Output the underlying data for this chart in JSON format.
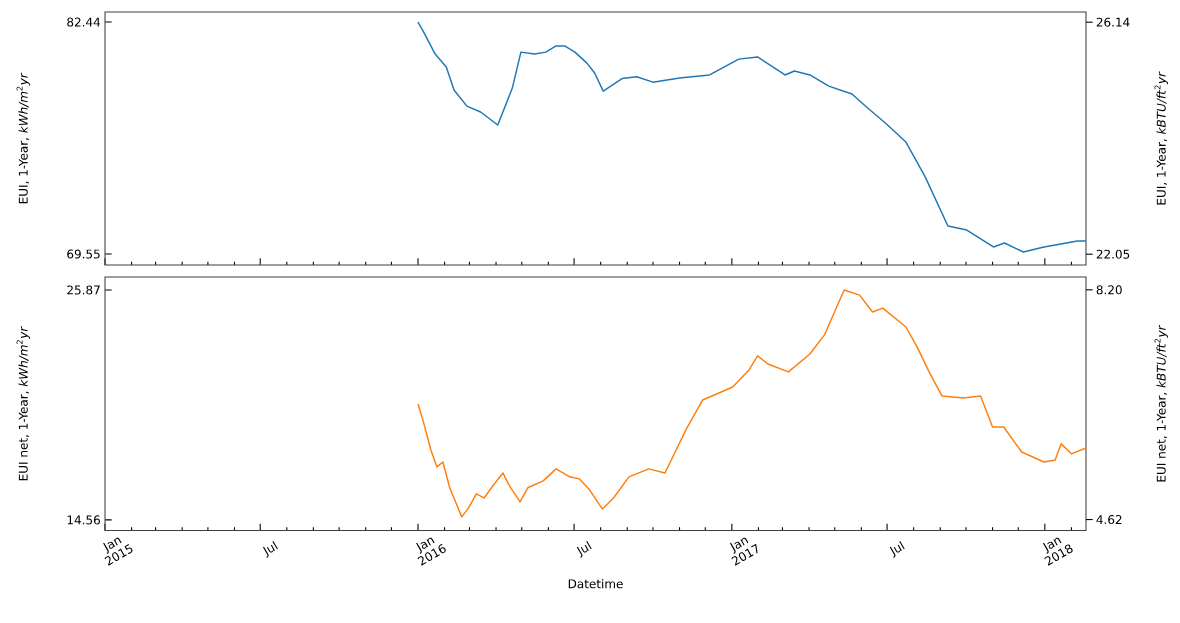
{
  "chart_data": [
    {
      "type": "line",
      "ylabel": "EUI, 1-Year, *kWh/m*$^{2}$*yr*",
      "y2label": "EUI, 1-Year, *kBTU/ft*$^{2}$*yr*",
      "xlim": [
        "2015-01-01",
        "2018-02-18"
      ],
      "xticks": [
        {
          "value": "2015-01-01",
          "label": null
        },
        {
          "value": "2015-07-01",
          "label": null
        },
        {
          "value": "2016-01-01",
          "label": null
        },
        {
          "value": "2016-07-01",
          "label": null
        },
        {
          "value": "2017-01-01",
          "label": null
        },
        {
          "value": "2017-07-01",
          "label": null
        },
        {
          "value": "2018-01-01",
          "label": null
        }
      ],
      "ylim": [
        68.94,
        83.0
      ],
      "yticks": [
        69.55,
        82.44
      ],
      "y2lim": [
        21.86,
        26.32
      ],
      "y2ticks": [
        22.05,
        26.14
      ],
      "tick_labels": "y",
      "x": [
        "2016-01-01",
        "2016-01-07",
        "2016-01-21",
        "2016-02-03",
        "2016-02-12",
        "2016-02-27",
        "2016-03-14",
        "2016-04-03",
        "2016-04-20",
        "2016-04-30",
        "2016-05-16",
        "2016-05-29",
        "2016-06-10",
        "2016-06-20",
        "2016-07-02",
        "2016-07-16",
        "2016-07-25",
        "2016-08-04",
        "2016-08-26",
        "2016-09-12",
        "2016-10-01",
        "2016-11-01",
        "2016-12-06",
        "2017-01-09",
        "2017-01-31",
        "2017-03-04",
        "2017-03-15",
        "2017-04-02",
        "2017-04-24",
        "2017-05-21",
        "2017-06-07",
        "2017-06-29",
        "2017-07-23",
        "2017-08-14",
        "2017-09-10",
        "2017-10-02",
        "2017-11-02",
        "2017-11-15",
        "2017-12-07",
        "2017-12-31",
        "2018-01-13",
        "2018-02-08",
        "2018-02-18"
      ],
      "series": [
        {
          "color": "#1f77b4",
          "values": [
            82.44,
            81.94,
            80.66,
            79.94,
            78.66,
            77.77,
            77.44,
            76.72,
            78.77,
            80.77,
            80.66,
            80.77,
            81.11,
            81.11,
            80.77,
            80.16,
            79.61,
            78.6,
            79.3,
            79.4,
            79.1,
            79.33,
            79.5,
            80.38,
            80.5,
            79.5,
            79.72,
            79.5,
            78.88,
            78.44,
            77.72,
            76.83,
            75.77,
            73.88,
            71.11,
            70.88,
            69.94,
            70.16,
            69.66,
            69.94,
            70.05,
            70.27,
            70.27
          ]
        }
      ]
    },
    {
      "type": "line",
      "xlabel": "Datetime",
      "ylabel": "EUI net, 1-Year, *kWh/m*$^{2}$*yr*",
      "y2label": "EUI net, 1-Year, *kBTU/ft*$^{2}$*yr*",
      "xlim": [
        "2015-01-01",
        "2018-02-18"
      ],
      "xticks": [
        {
          "value": "2015-01-01",
          "label": "Jan 2015"
        },
        {
          "value": "2015-07-01",
          "label": "Jul"
        },
        {
          "value": "2016-01-01",
          "label": "Jan 2016"
        },
        {
          "value": "2016-07-01",
          "label": "Jul"
        },
        {
          "value": "2017-01-01",
          "label": "Jan 2017"
        },
        {
          "value": "2017-07-01",
          "label": "Jul"
        },
        {
          "value": "2018-01-01",
          "label": "Jan 2018"
        }
      ],
      "ylim": [
        14.04,
        26.51
      ],
      "yticks": [
        14.56,
        25.87
      ],
      "y2lim": [
        4.45,
        8.4
      ],
      "y2ticks": [
        {
          "value": 4.62,
          "label": "4.62"
        },
        {
          "value": 8.2,
          "label": "8.20"
        }
      ],
      "x": [
        "2016-01-01",
        "2016-01-07",
        "2016-01-16",
        "2016-01-23",
        "2016-01-30",
        "2016-02-07",
        "2016-02-21",
        "2016-02-29",
        "2016-03-09",
        "2016-03-18",
        "2016-03-29",
        "2016-04-09",
        "2016-04-16",
        "2016-04-29",
        "2016-05-08",
        "2016-05-26",
        "2016-06-10",
        "2016-06-26",
        "2016-07-07",
        "2016-07-19",
        "2016-08-03",
        "2016-08-16",
        "2016-09-03",
        "2016-09-26",
        "2016-10-15",
        "2016-11-09",
        "2016-11-28",
        "2017-01-02",
        "2017-01-21",
        "2017-01-31",
        "2017-02-12",
        "2017-03-08",
        "2017-04-02",
        "2017-04-19",
        "2017-05-12",
        "2017-05-30",
        "2017-06-14",
        "2017-06-26",
        "2017-07-23",
        "2017-08-05",
        "2017-08-19",
        "2017-09-03",
        "2017-09-28",
        "2017-10-18",
        "2017-11-01",
        "2017-11-14",
        "2017-12-05",
        "2017-12-31",
        "2018-01-13",
        "2018-01-20",
        "2018-02-01",
        "2018-02-18"
      ],
      "series": [
        {
          "color": "#ff7f0e",
          "values": [
            20.26,
            19.43,
            18.0,
            17.17,
            17.41,
            16.14,
            14.71,
            15.15,
            15.84,
            15.64,
            16.28,
            16.87,
            16.28,
            15.45,
            16.14,
            16.48,
            17.07,
            16.68,
            16.58,
            16.04,
            15.1,
            15.64,
            16.68,
            17.07,
            16.87,
            19.04,
            20.46,
            21.1,
            21.94,
            22.63,
            22.23,
            21.84,
            22.72,
            23.66,
            25.87,
            25.62,
            24.79,
            24.98,
            24.05,
            23.07,
            21.84,
            20.66,
            20.56,
            20.66,
            19.13,
            19.13,
            17.9,
            17.41,
            17.51,
            18.3,
            17.81,
            18.1
          ]
        }
      ]
    }
  ]
}
